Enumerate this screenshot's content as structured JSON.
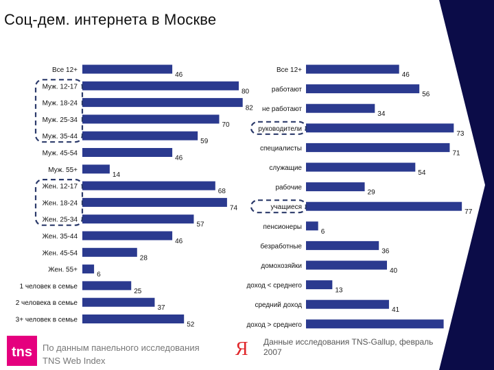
{
  "title": "Соц-дем. интернета в Москве",
  "colors": {
    "bar": "#2b3a8f",
    "highlight": "#2b3a6a",
    "arrow": "#0b0c48",
    "brand": "#e5007e",
    "yandex": "#e0262a"
  },
  "chart_data": [
    {
      "type": "bar",
      "orientation": "horizontal",
      "name": "left-demographics",
      "categories": [
        "Все 12+",
        "Муж. 12-17",
        "Муж. 18-24",
        "Муж. 25-34",
        "Муж. 35-44",
        "Муж. 45-54",
        "Муж. 55+",
        "Жен. 12-17",
        "Жен. 18-24",
        "Жен. 25-34",
        "Жен. 35-44",
        "Жен. 45-54",
        "Жен. 55+",
        "1 человек в семье",
        "2 человека в семье",
        "3+ человек в семье"
      ],
      "values": [
        46,
        80,
        82,
        70,
        59,
        46,
        14,
        68,
        74,
        57,
        46,
        28,
        6,
        25,
        37,
        52
      ],
      "highlighted": [
        "Муж. 12-17",
        "Муж. 18-24",
        "Муж. 25-34",
        "Муж. 35-44",
        "Жен. 12-17",
        "Жен. 18-24",
        "Жен. 25-34"
      ]
    },
    {
      "type": "bar",
      "orientation": "horizontal",
      "name": "right-occupation",
      "categories": [
        "Все 12+",
        "работают",
        "не работают",
        "руководители",
        "специалисты",
        "служащие",
        "рабочие",
        "учащиеся",
        "пенсионеры",
        "безработные",
        "домохозяйки",
        "доход < среднего",
        "средний доход",
        "доход > среднего"
      ],
      "values": [
        46,
        56,
        34,
        73,
        71,
        54,
        29,
        77,
        6,
        36,
        40,
        13,
        41,
        68
      ],
      "value_labels": [
        "46",
        "56",
        "34",
        "73",
        "71",
        "54",
        "29",
        "77",
        "6",
        "36",
        "40",
        "13",
        "41",
        ""
      ],
      "highlighted": [
        "руководители",
        "учащиеся"
      ]
    }
  ],
  "footer": {
    "tns_logo": "tns",
    "source_text": "По данным панельного исследования TNS Web Index",
    "yandex_logo": "Я",
    "research_text": "Данные исследования TNS-Gallup, февраль 2007"
  }
}
